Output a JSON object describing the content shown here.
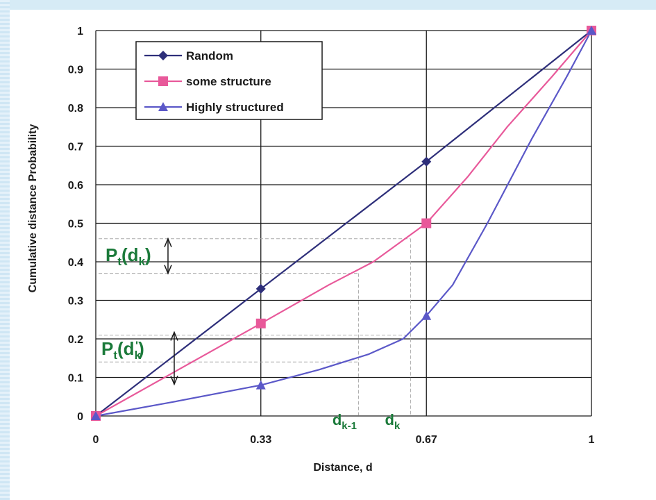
{
  "chart_data": {
    "type": "line",
    "title": "",
    "xlabel": "Distance, d",
    "ylabel": "Cumulative distance Probability",
    "xlim": [
      0,
      1
    ],
    "ylim": [
      0,
      1
    ],
    "x_ticks": [
      "0",
      "0.33",
      "0.67",
      "1"
    ],
    "x_tick_values": [
      0,
      0.333,
      0.667,
      1
    ],
    "y_ticks": [
      "0",
      "0.1",
      "0.2",
      "0.3",
      "0.4",
      "0.5",
      "0.6",
      "0.7",
      "0.8",
      "0.9",
      "1"
    ],
    "y_tick_values": [
      0,
      0.1,
      0.2,
      0.3,
      0.4,
      0.5,
      0.6,
      0.7,
      0.8,
      0.9,
      1
    ],
    "grid": true,
    "legend_position": "top-left",
    "series": [
      {
        "name": "Random",
        "color": "#2e2f7a",
        "marker": "diamond",
        "x": [
          0,
          0.333,
          0.667,
          1
        ],
        "y": [
          0,
          0.33,
          0.66,
          1
        ]
      },
      {
        "name": "some structure",
        "color": "#e8599a",
        "marker": "square",
        "x": [
          0,
          0.333,
          0.667,
          1
        ],
        "y": [
          0,
          0.24,
          0.5,
          1
        ],
        "curve": [
          [
            0,
            0
          ],
          [
            0.333,
            0.24
          ],
          [
            0.47,
            0.34
          ],
          [
            0.56,
            0.4
          ],
          [
            0.667,
            0.5
          ],
          [
            0.75,
            0.62
          ],
          [
            0.83,
            0.75
          ],
          [
            0.92,
            0.88
          ],
          [
            1,
            1
          ]
        ]
      },
      {
        "name": "Highly structured",
        "color": "#5b58c8",
        "marker": "triangle",
        "x": [
          0,
          0.333,
          0.667,
          1
        ],
        "y": [
          0,
          0.08,
          0.26,
          1
        ],
        "curve": [
          [
            0,
            0
          ],
          [
            0.15,
            0.035
          ],
          [
            0.333,
            0.08
          ],
          [
            0.45,
            0.12
          ],
          [
            0.55,
            0.16
          ],
          [
            0.62,
            0.2
          ],
          [
            0.667,
            0.26
          ],
          [
            0.72,
            0.34
          ],
          [
            0.79,
            0.5
          ],
          [
            0.88,
            0.72
          ],
          [
            0.95,
            0.88
          ],
          [
            1,
            1
          ]
        ]
      }
    ],
    "annotations": {
      "pt_dk": {
        "base": "P",
        "sub": "t",
        "arg": "(d",
        "arg_sub": "k",
        "close": ")"
      },
      "pt_dk_prime": {
        "base": "P",
        "sub": "t",
        "arg": "(d",
        "arg_sub": "k",
        "prime": "'",
        "close": ")"
      },
      "dk_minus_1": {
        "base": "d",
        "sub": "k-1",
        "x": 0.53
      },
      "dk": {
        "base": "d",
        "sub": "k",
        "x": 0.635
      },
      "ref_levels": {
        "upper_a": 0.46,
        "upper_b": 0.37,
        "lower_a": 0.21,
        "lower_b": 0.14
      }
    },
    "guide_color": "#aaaaaa",
    "grid_color": "#1a1a1a",
    "annotation_color": "#1b7a3a"
  }
}
